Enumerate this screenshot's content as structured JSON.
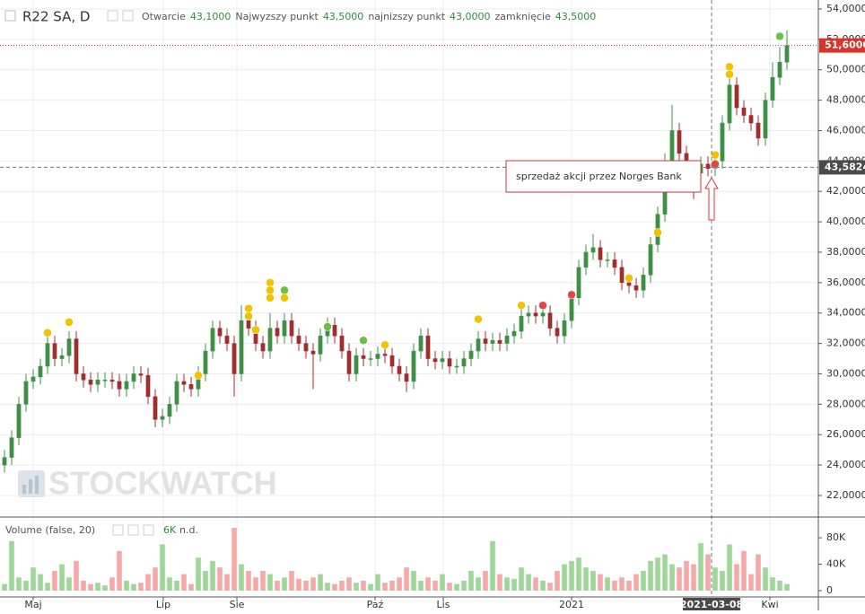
{
  "chart_data": {
    "type": "candlestick",
    "header": {
      "symbol": "R22 SA, D",
      "open_label": "Otwarcie",
      "open": "43,1000",
      "high_label": "Najwyzszy punkt",
      "high": "43,5000",
      "low_label": "najnizszy punkt",
      "low": "43,0000",
      "close_label": "zamknięcie",
      "close": "43,5000"
    },
    "watermark": "STOCKWATCH",
    "annotation": "sprzedaż akcji przez Norges Bank",
    "volume_legend": {
      "title": "Volume (false, 20)",
      "value": "6K",
      "ma": "n.d."
    },
    "xlim": [
      -0.625,
      113.375
    ],
    "xticks": [
      {
        "value": 4,
        "label": "Maj"
      },
      {
        "value": 22.125,
        "label": "Lip"
      },
      {
        "value": 32.375,
        "label": "Sie"
      },
      {
        "value": 51.625,
        "label": "Paź"
      },
      {
        "value": 61.125,
        "label": "Lis"
      },
      {
        "value": 79,
        "label": "2021"
      },
      {
        "value": 106.625,
        "label": "Kwi"
      }
    ],
    "ylim": [
      20.58,
      54.59
    ],
    "yticks": [
      {
        "value": 22,
        "label": "22,0000"
      },
      {
        "value": 24,
        "label": "24,0000"
      },
      {
        "value": 26,
        "label": "26,0000"
      },
      {
        "value": 28,
        "label": "28,0000"
      },
      {
        "value": 30,
        "label": "30,0000"
      },
      {
        "value": 32,
        "label": "32,0000"
      },
      {
        "value": 34,
        "label": "34,0000"
      },
      {
        "value": 36,
        "label": "36,0000"
      },
      {
        "value": 38,
        "label": "38,0000"
      },
      {
        "value": 40,
        "label": "40,0000"
      },
      {
        "value": 42,
        "label": "42,0000"
      },
      {
        "value": 44,
        "label": "44,0000"
      },
      {
        "value": 46,
        "label": "46,0000"
      },
      {
        "value": 48,
        "label": "48,0000"
      },
      {
        "value": 50,
        "label": "50,0000"
      },
      {
        "value": 52,
        "label": "52,0000"
      },
      {
        "value": 54,
        "label": "54,0000"
      }
    ],
    "volume_ylim": [
      -9500,
      110000
    ],
    "volume_yticks": [
      0,
      {
        "value": 40000,
        "label": "40K"
      },
      {
        "value": 80000,
        "label": "80K"
      }
    ],
    "grid": true,
    "up_color": "#3f8f46",
    "down_color": "#9e2f2f",
    "volume_up_color": "#9fd69a",
    "volume_down_color": "#f3a9a9",
    "open": [
      24.0,
      24.5,
      25.8,
      28,
      29.5,
      29.8,
      30.5,
      32,
      31,
      31.2,
      32.3,
      30,
      29.6,
      29.3,
      29.6,
      29.6,
      29.5,
      29,
      29.5,
      30,
      29.9,
      28.5,
      27,
      27.2,
      28,
      29.5,
      29.3,
      29,
      30,
      31.5,
      33,
      32.5,
      32,
      30,
      33.5,
      33,
      32,
      31.5,
      33,
      32.5,
      33.5,
      32.5,
      32,
      31.5,
      31.3,
      32.5,
      33.2,
      32.5,
      31.5,
      30,
      31.2,
      31,
      31,
      31.3,
      31.2,
      30.5,
      30,
      29.5,
      31.5,
      32.5,
      31,
      30.8,
      31,
      30.5,
      30.5,
      31,
      31.5,
      32.3,
      32,
      32.2,
      32,
      32.5,
      32.8,
      33.8,
      34,
      33.8,
      34,
      33,
      32.5,
      33.5,
      35,
      37,
      38,
      38.3,
      37.5,
      37.5,
      37,
      36,
      35.8,
      35.5,
      36.5,
      38.5,
      40.5,
      44,
      46,
      44.5,
      43.5,
      43.2,
      43.8,
      43.5,
      44,
      46.5,
      49,
      47.5,
      47,
      46.5,
      45.5,
      48,
      49.5,
      50.5
    ],
    "high": [
      25.0,
      26.3,
      28.5,
      30.0,
      30.3,
      31.0,
      32.5,
      32.5,
      31.7,
      32.8,
      32.8,
      30.5,
      30.1,
      30.1,
      30.1,
      30.1,
      30.0,
      30.0,
      30.5,
      30.5,
      30.4,
      29.0,
      27.7,
      28.5,
      30.0,
      30.0,
      29.8,
      30.5,
      32.0,
      33.5,
      33.5,
      33.0,
      32.5,
      34.5,
      34.0,
      33.5,
      32.5,
      34.0,
      33.5,
      34.0,
      34.0,
      33.0,
      32.5,
      32.0,
      33.0,
      33.7,
      33.7,
      33.0,
      32.0,
      31.7,
      31.7,
      31.5,
      31.8,
      31.8,
      31.7,
      31.0,
      30.5,
      32.0,
      33.0,
      33.0,
      31.5,
      31.5,
      31.5,
      31.0,
      31.5,
      32.0,
      32.8,
      32.8,
      32.7,
      32.7,
      33.0,
      33.3,
      34.3,
      34.5,
      34.5,
      34.5,
      34.5,
      33.5,
      34.0,
      35.5,
      37.5,
      38.5,
      39.2,
      38.8,
      38.0,
      38.0,
      37.5,
      36.5,
      36.3,
      37.0,
      39.0,
      41.0,
      44.5,
      47.7,
      46.5,
      45.0,
      44.0,
      44.3,
      44.3,
      44.5,
      47.0,
      49.5,
      49.5,
      48.0,
      47.5,
      47.0,
      48.5,
      50.5,
      51.5,
      52.6
    ],
    "low": [
      23.5,
      24.0,
      25.3,
      27.5,
      29.0,
      29.3,
      30.0,
      30.5,
      30.5,
      30.7,
      29.5,
      29.1,
      28.8,
      28.8,
      29.1,
      29.0,
      28.5,
      28.5,
      29.0,
      29.4,
      28.0,
      26.5,
      26.5,
      26.7,
      27.5,
      28.8,
      28.5,
      28.5,
      29.5,
      31.0,
      32.0,
      31.5,
      28.5,
      29.5,
      32.5,
      31.5,
      31.0,
      31.0,
      32.0,
      32.0,
      32.0,
      31.5,
      31.0,
      29.0,
      30.8,
      32.0,
      32.0,
      31.0,
      29.5,
      29.5,
      30.5,
      30.5,
      30.5,
      30.7,
      30.0,
      29.5,
      28.8,
      29.0,
      31.0,
      30.5,
      30.3,
      30.3,
      30.0,
      30.0,
      30.0,
      30.5,
      31.0,
      31.5,
      31.5,
      31.5,
      31.5,
      32.0,
      32.3,
      33.3,
      33.3,
      33.3,
      32.5,
      32.0,
      32.0,
      33.0,
      34.5,
      36.5,
      37.5,
      37.0,
      37.0,
      36.5,
      35.5,
      35.3,
      35.0,
      35.0,
      36.0,
      38.0,
      40.0,
      43.5,
      43.0,
      42.0,
      41.5,
      42.7,
      43.0,
      43.0,
      43.5,
      46.0,
      47.0,
      46.5,
      46.0,
      45.0,
      45.0,
      47.5,
      49.0,
      50.0
    ],
    "close": [
      24.5,
      25.8,
      28,
      29.5,
      29.8,
      30.5,
      32,
      31,
      31.2,
      32.3,
      30,
      29.6,
      29.3,
      29.6,
      29.6,
      29.5,
      29,
      29.5,
      30,
      29.9,
      28.5,
      27,
      27.2,
      28,
      29.5,
      29.3,
      29,
      30,
      31.5,
      33,
      32.5,
      32,
      30,
      33.5,
      33,
      32,
      31.5,
      33,
      32.5,
      33.5,
      32.5,
      32,
      31.5,
      31.3,
      32.5,
      33.2,
      32.5,
      31.5,
      30,
      31.2,
      31,
      31,
      31.3,
      31.2,
      30.5,
      30,
      29.5,
      31.5,
      32.5,
      31,
      30.8,
      31,
      30.5,
      30.5,
      31,
      31.5,
      32.3,
      32,
      32.2,
      32,
      32.5,
      32.8,
      33.8,
      34,
      33.8,
      34,
      33,
      32.5,
      33.5,
      35,
      37,
      38,
      38.3,
      37.5,
      37.5,
      37,
      36,
      35.8,
      35.5,
      36.5,
      38.5,
      40.5,
      44,
      46,
      44.5,
      43.5,
      43.2,
      43.8,
      43.5,
      44,
      46.5,
      49,
      47.5,
      47,
      46.5,
      45.5,
      48,
      49.5,
      50.5,
      51.6
    ],
    "volume": [
      10000,
      75000,
      20000,
      15000,
      35000,
      25000,
      12000,
      30000,
      40000,
      20000,
      45000,
      15000,
      10000,
      12000,
      8000,
      20000,
      60000,
      15000,
      10000,
      12000,
      25000,
      35000,
      70000,
      20000,
      15000,
      25000,
      10000,
      50000,
      30000,
      45000,
      35000,
      25000,
      95000,
      40000,
      30000,
      20000,
      30000,
      25000,
      15000,
      20000,
      30000,
      18000,
      15000,
      20000,
      25000,
      12000,
      10000,
      15000,
      20000,
      12000,
      15000,
      10000,
      25000,
      12000,
      15000,
      20000,
      35000,
      30000,
      15000,
      20000,
      15000,
      25000,
      12000,
      10000,
      15000,
      30000,
      20000,
      30000,
      75000,
      25000,
      20000,
      18000,
      35000,
      25000,
      20000,
      15000,
      12000,
      30000,
      40000,
      45000,
      50000,
      35000,
      30000,
      25000,
      20000,
      15000,
      20000,
      15000,
      25000,
      30000,
      45000,
      50000,
      55000,
      40000,
      35000,
      45000,
      40000,
      72000,
      55000,
      35000,
      30000,
      70000,
      40000,
      60000,
      25000,
      55000,
      35000,
      20000,
      15000,
      10000
    ],
    "markers": [
      {
        "x": 6,
        "value": 32.7,
        "color": "#f2c200"
      },
      {
        "x": 9,
        "value": 33.4,
        "color": "#f2c200"
      },
      {
        "x": 27,
        "value": 29.9,
        "color": "#f2c200"
      },
      {
        "x": 34,
        "value": 34.3,
        "color": "#f2c200"
      },
      {
        "x": 34,
        "value": 33.8,
        "color": "#f2c200"
      },
      {
        "x": 35,
        "value": 32.9,
        "color": "#f2c200"
      },
      {
        "x": 37,
        "value": 36.0,
        "color": "#f2c200"
      },
      {
        "x": 37,
        "value": 35.5,
        "color": "#f2c200"
      },
      {
        "x": 37,
        "value": 35.0,
        "color": "#f2c200"
      },
      {
        "x": 39,
        "value": 35.5,
        "color": "#6cc04a"
      },
      {
        "x": 39,
        "value": 35.0,
        "color": "#f2c200"
      },
      {
        "x": 45,
        "value": 33.1,
        "color": "#6cc04a"
      },
      {
        "x": 50,
        "value": 32.2,
        "color": "#6cc04a"
      },
      {
        "x": 53,
        "value": 31.9,
        "color": "#f2c200"
      },
      {
        "x": 66,
        "value": 33.6,
        "color": "#f2c200"
      },
      {
        "x": 72,
        "value": 34.5,
        "color": "#f2c200"
      },
      {
        "x": 75,
        "value": 34.5,
        "color": "#e04848"
      },
      {
        "x": 79,
        "value": 35.2,
        "color": "#e04848"
      },
      {
        "x": 87,
        "value": 36.3,
        "color": "#f2c200"
      },
      {
        "x": 91,
        "value": 39.3,
        "color": "#f2c200"
      },
      {
        "x": 99,
        "value": 44.4,
        "color": "#f2c200"
      },
      {
        "x": 99,
        "value": 43.8,
        "color": "#e04848"
      },
      {
        "x": 101,
        "value": 50.2,
        "color": "#f2c200"
      },
      {
        "x": 101,
        "value": 49.7,
        "color": "#f2c200"
      },
      {
        "x": 108,
        "value": 52.2,
        "color": "#6cc04a"
      }
    ],
    "last_price": {
      "value": 51.6,
      "label": "51,6000",
      "color": "#d9342b"
    },
    "crosshair": {
      "x": 98.5,
      "x_label": "2021-03-08",
      "value": 43.5824,
      "label": "43,5824"
    }
  }
}
